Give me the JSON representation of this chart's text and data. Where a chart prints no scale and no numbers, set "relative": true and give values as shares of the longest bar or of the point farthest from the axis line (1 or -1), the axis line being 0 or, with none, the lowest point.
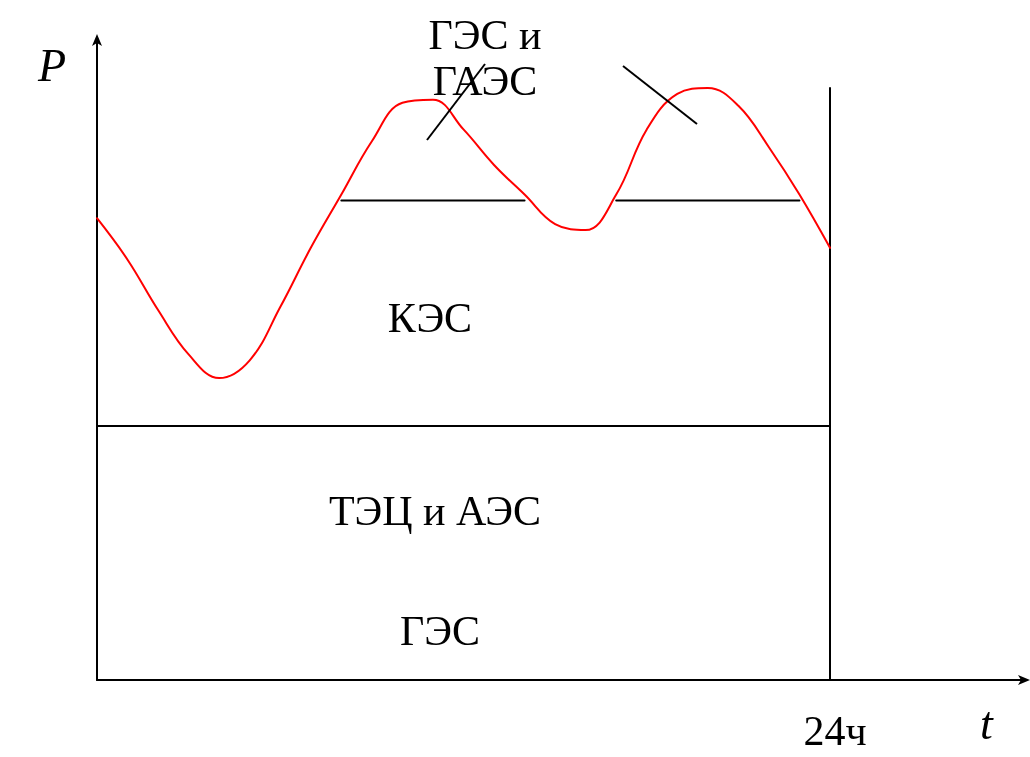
{
  "chart_data": {
    "type": "line",
    "relative": true,
    "xlabel": "t",
    "ylabel": "P",
    "categories": [
      null,
      null,
      null,
      null,
      null,
      null,
      null,
      null,
      null,
      null,
      null,
      null,
      null,
      null,
      null,
      null,
      null,
      null,
      null,
      null,
      null,
      null,
      null,
      null,
      null
    ],
    "series": [
      {
        "color": "#ff0000",
        "values": [
          0.78,
          0.71,
          0.625,
          0.55,
          0.51,
          0.54,
          0.63,
          0.73,
          0.82,
          0.91,
          0.975,
          0.98,
          0.93,
          0.87,
          0.82,
          0.77,
          0.76,
          0.82,
          0.93,
          0.99,
          1.0,
          0.97,
          0.9,
          0.82,
          0.73
        ]
      },
      {
        "color": "#000000",
        "values": [
          null,
          null,
          null,
          null,
          null,
          null,
          null,
          null,
          0.81,
          0.81,
          0.81,
          0.81,
          0.81,
          0.81,
          0.81,
          null,
          null,
          0.81,
          0.81,
          0.81,
          0.81,
          0.81,
          0.81,
          0.81,
          null
        ]
      }
    ],
    "ref_lines": [
      {
        "axis": "y",
        "value": 0.43,
        "color": "#000000"
      }
    ],
    "annotations": [
      "ГЭС и ГАЭС",
      "КЭС",
      "ТЭЦ и АЭС",
      "ГЭС",
      "24ч"
    ],
    "grid": false,
    "marker": "none",
    "line_style": "solid"
  }
}
